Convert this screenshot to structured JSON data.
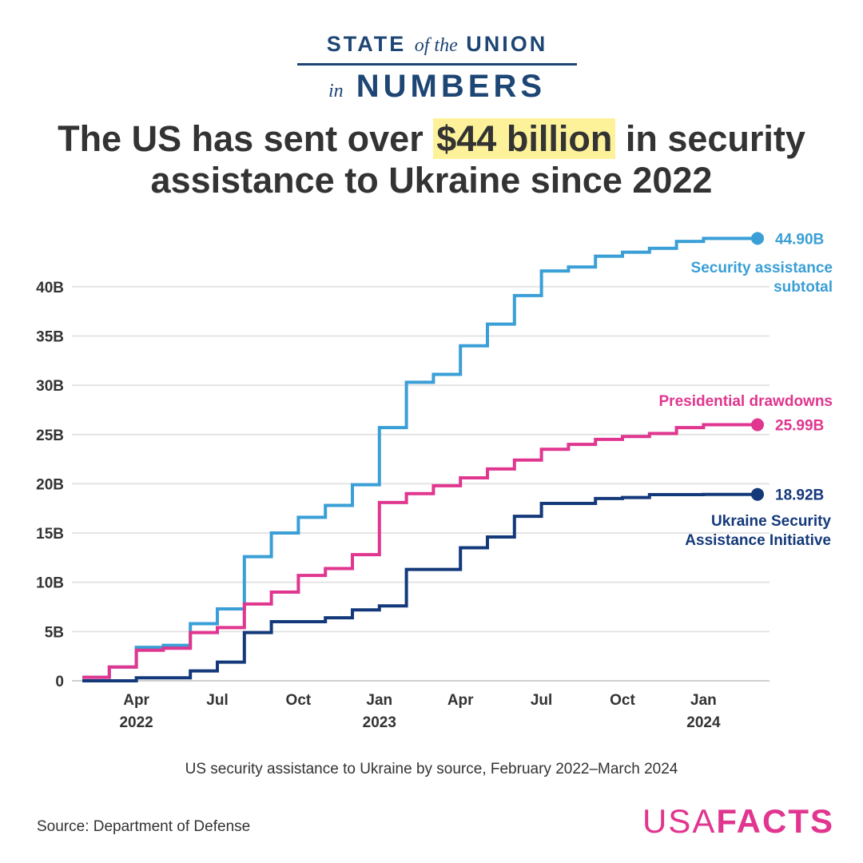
{
  "header": {
    "logo_line1_a": "STATE",
    "logo_line1_b": "of the",
    "logo_line1_c": "UNION",
    "logo_line2_a": "in",
    "logo_line2_b": "NUMBERS",
    "title_pre": "The US has sent over",
    "title_highlight": "$44 billion",
    "title_post": "in security assistance to Ukraine since 2022"
  },
  "chart_data": {
    "type": "line",
    "step": true,
    "x": [
      "2022-02",
      "2022-03",
      "2022-04",
      "2022-05",
      "2022-06",
      "2022-07",
      "2022-08",
      "2022-09",
      "2022-10",
      "2022-11",
      "2022-12",
      "2023-01",
      "2023-02",
      "2023-03",
      "2023-04",
      "2023-05",
      "2023-06",
      "2023-07",
      "2023-08",
      "2023-09",
      "2023-10",
      "2023-11",
      "2023-12",
      "2024-01",
      "2024-02",
      "2024-03"
    ],
    "xticks": [
      {
        "month": 2,
        "label": "Apr",
        "year": "2022"
      },
      {
        "month": 5,
        "label": "Jul"
      },
      {
        "month": 8,
        "label": "Oct"
      },
      {
        "month": 11,
        "label": "Jan",
        "year": "2023"
      },
      {
        "month": 14,
        "label": "Apr"
      },
      {
        "month": 17,
        "label": "Jul"
      },
      {
        "month": 20,
        "label": "Oct"
      },
      {
        "month": 23,
        "label": "Jan",
        "year": "2024"
      }
    ],
    "yticks": [
      {
        "v": 0,
        "label": "0"
      },
      {
        "v": 5,
        "label": "5B"
      },
      {
        "v": 10,
        "label": "10B"
      },
      {
        "v": 15,
        "label": "15B"
      },
      {
        "v": 20,
        "label": "20B"
      },
      {
        "v": 25,
        "label": "25B"
      },
      {
        "v": 30,
        "label": "30B"
      },
      {
        "v": 35,
        "label": "35B"
      },
      {
        "v": 40,
        "label": "40B"
      }
    ],
    "ylim": [
      0,
      45
    ],
    "grid": true,
    "series": [
      {
        "name": "Security assistance subtotal",
        "name_lines": [
          "Security assistance",
          "subtotal"
        ],
        "end_label": "44.90B",
        "color": "#3a9fd6",
        "values": [
          0.35,
          1.4,
          3.4,
          3.6,
          5.8,
          7.3,
          12.6,
          15.0,
          16.6,
          17.8,
          19.9,
          25.7,
          30.3,
          31.1,
          34.0,
          36.2,
          39.1,
          41.6,
          42.0,
          43.1,
          43.5,
          43.9,
          44.6,
          44.9,
          44.9,
          44.9
        ]
      },
      {
        "name": "Presidential drawdowns",
        "name_lines": [
          "Presidential drawdowns"
        ],
        "end_label": "25.99B",
        "color": "#e0368f",
        "values": [
          0.35,
          1.4,
          3.1,
          3.3,
          4.9,
          5.4,
          7.8,
          9.0,
          10.7,
          11.4,
          12.8,
          18.1,
          19.0,
          19.8,
          20.6,
          21.5,
          22.4,
          23.5,
          24.0,
          24.5,
          24.8,
          25.1,
          25.7,
          25.99,
          25.99,
          25.99
        ]
      },
      {
        "name": "Ukraine Security Assistance Initiative",
        "name_lines": [
          "Ukraine Security",
          "Assistance Initiative"
        ],
        "end_label": "18.92B",
        "color": "#14397a",
        "values": [
          0.0,
          0.0,
          0.3,
          0.3,
          1.0,
          1.9,
          4.9,
          6.0,
          6.0,
          6.4,
          7.2,
          7.6,
          11.3,
          11.3,
          13.5,
          14.6,
          16.7,
          18.0,
          18.0,
          18.5,
          18.6,
          18.9,
          18.9,
          18.92,
          18.92,
          18.92
        ]
      }
    ]
  },
  "caption": "US security assistance to Ukraine by source, February 2022–March 2024",
  "source": "Source: Department of Defense",
  "brand": {
    "a": "USA",
    "b": "FACTS"
  }
}
